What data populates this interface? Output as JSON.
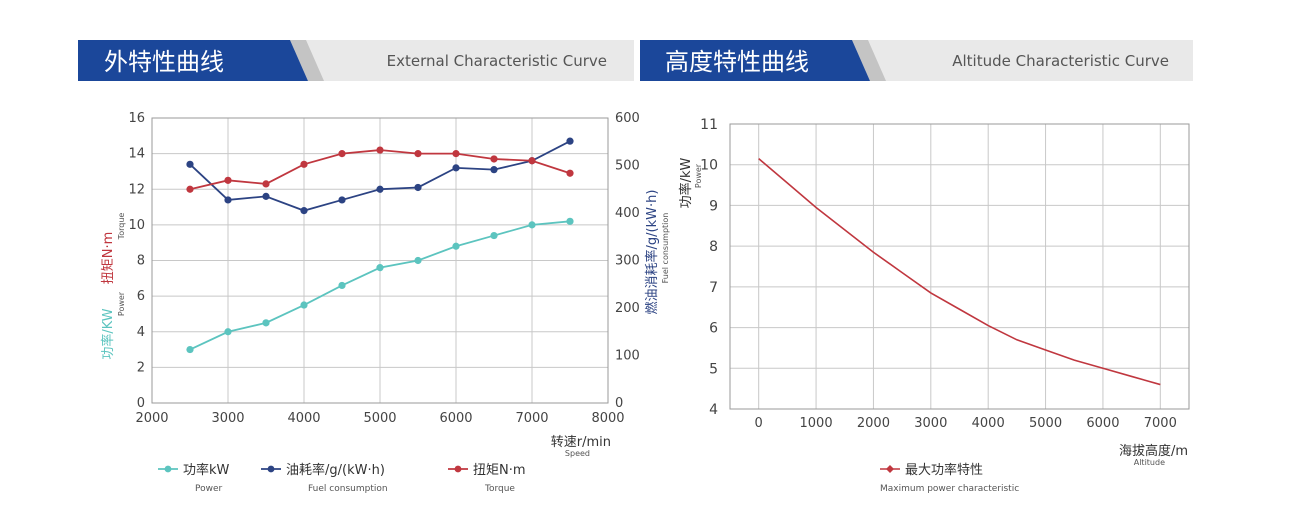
{
  "colors": {
    "banner_blue": "#1b479a",
    "banner_gray": "#e9e9e9",
    "power": "#5cc4bf",
    "fuel": "#2c4383",
    "torque": "#c0373f",
    "altitude": "#c0373f",
    "grid": "#c8c8c8"
  },
  "left_panel": {
    "title": "外特性曲线",
    "subtitle": "External Characteristic Curve"
  },
  "right_panel": {
    "title": "高度特性曲线",
    "subtitle": "Altitude Characteristic Curve"
  },
  "chart_data": [
    {
      "type": "line",
      "title": "外特性曲线",
      "x": [
        2500,
        3000,
        3500,
        4000,
        4500,
        5000,
        5500,
        6000,
        6500,
        7000,
        7500
      ],
      "xlim": [
        2000,
        8000
      ],
      "xticks": [
        "2000",
        "3000",
        "4000",
        "5000",
        "6000",
        "7000",
        "8000"
      ],
      "xlabel": "转速r/min",
      "xlabel_sub": "Speed",
      "ylim_left": [
        0,
        16
      ],
      "yticks_left": [
        "0",
        "2",
        "4",
        "6",
        "8",
        "10",
        "12",
        "14",
        "16"
      ],
      "ylabel_left_power": "功率/KW",
      "ylabel_left_power_sub": "Power",
      "ylabel_left_torque": "扭矩N·m",
      "ylabel_left_torque_sub": "Torque",
      "ylim_right": [
        0,
        600
      ],
      "yticks_right": [
        "0",
        "100",
        "200",
        "300",
        "400",
        "500",
        "600"
      ],
      "ylabel_right": "燃油消耗率/g/(kW·h)",
      "ylabel_right_sub": "Fuel consumption",
      "grid": true,
      "legend_position": "bottom",
      "series": [
        {
          "name": "功率kW",
          "name_sub": "Power",
          "axis": "left",
          "values": [
            3.0,
            4.0,
            4.5,
            5.5,
            6.6,
            7.6,
            8.0,
            8.8,
            9.4,
            10.0,
            10.2
          ]
        },
        {
          "name": "油耗率/g/(kW·h)",
          "name_sub": "Fuel consumption",
          "axis": "left",
          "values": [
            13.4,
            11.4,
            11.6,
            10.8,
            11.4,
            12.0,
            12.1,
            13.2,
            13.1,
            13.6,
            14.7
          ]
        },
        {
          "name": "扭矩N·m",
          "name_sub": "Torque",
          "axis": "left",
          "values": [
            12.0,
            12.5,
            12.3,
            13.4,
            14.0,
            14.2,
            14.0,
            14.0,
            13.7,
            13.6,
            12.9
          ]
        }
      ]
    },
    {
      "type": "line",
      "title": "高度特性曲线",
      "x": [
        0,
        500,
        1000,
        1500,
        2000,
        2500,
        3000,
        3500,
        4000,
        4500,
        5000,
        5500,
        6000,
        6500,
        7000
      ],
      "xlim": [
        -500,
        7500
      ],
      "xticks": [
        "0",
        "1000",
        "2000",
        "3000",
        "4000",
        "5000",
        "6000",
        "7000"
      ],
      "xlabel": "海拔高度/m",
      "xlabel_sub": "Altitude",
      "ylim": [
        4,
        11
      ],
      "yticks": [
        "4",
        "5",
        "6",
        "7",
        "8",
        "9",
        "10",
        "11"
      ],
      "ylabel": "功率/kW",
      "ylabel_sub": "Power",
      "grid": true,
      "legend_position": "bottom",
      "series": [
        {
          "name": "最大功率特性",
          "name_sub": "Maximum power characteristic",
          "values": [
            10.15,
            9.55,
            8.95,
            8.4,
            7.85,
            7.35,
            6.85,
            6.45,
            6.05,
            5.7,
            5.45,
            5.2,
            5.0,
            4.8,
            4.6
          ]
        }
      ]
    }
  ]
}
